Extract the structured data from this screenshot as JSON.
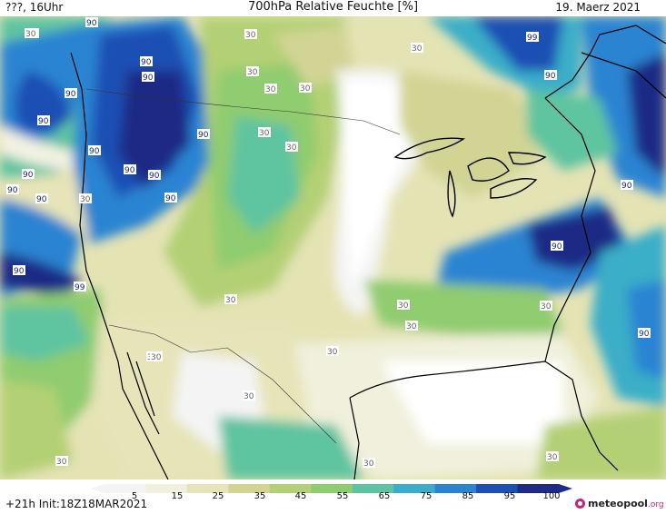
{
  "header": {
    "left_label": "???, 16Uhr",
    "title": "700hPa Relative Feuchte [%]",
    "date": "19. Maerz 2021"
  },
  "footer": {
    "init_label": "+21h Init:18Z18MAR2021",
    "logo_name": "meteopool",
    "logo_suffix": ".org"
  },
  "legend": {
    "ticks": [
      "5",
      "15",
      "25",
      "35",
      "45",
      "55",
      "65",
      "75",
      "85",
      "95",
      "100"
    ],
    "colors": [
      "#f4f4f4",
      "#f0f0dc",
      "#e6e4b8",
      "#d2d494",
      "#b4d074",
      "#90cc70",
      "#5ec4a0",
      "#3aaec8",
      "#2a84d2",
      "#1e4fb4",
      "#1e2a86"
    ]
  },
  "map": {
    "labels": [
      {
        "text": "90"
      },
      {
        "text": "30"
      },
      {
        "text": "90"
      },
      {
        "text": "90"
      },
      {
        "text": "90"
      },
      {
        "text": "90"
      },
      {
        "text": "90"
      },
      {
        "text": "90"
      },
      {
        "text": "90"
      },
      {
        "text": "90"
      },
      {
        "text": "90"
      },
      {
        "text": "90"
      },
      {
        "text": "90"
      },
      {
        "text": "30"
      },
      {
        "text": "30"
      },
      {
        "text": "30"
      },
      {
        "text": "30"
      },
      {
        "text": "30"
      },
      {
        "text": "30"
      },
      {
        "text": "30"
      },
      {
        "text": "99"
      },
      {
        "text": "90"
      },
      {
        "text": "90"
      },
      {
        "text": "90"
      },
      {
        "text": "99"
      },
      {
        "text": "30"
      },
      {
        "text": "30"
      },
      {
        "text": "30"
      },
      {
        "text": "30"
      },
      {
        "text": "30"
      },
      {
        "text": "30"
      },
      {
        "text": "30"
      },
      {
        "text": "30"
      },
      {
        "text": "30"
      },
      {
        "text": "90"
      },
      {
        "text": "90"
      },
      {
        "text": "30"
      },
      {
        "text": "30"
      },
      {
        "text": "30"
      },
      {
        "text": "90"
      },
      {
        "text": "30"
      }
    ]
  }
}
